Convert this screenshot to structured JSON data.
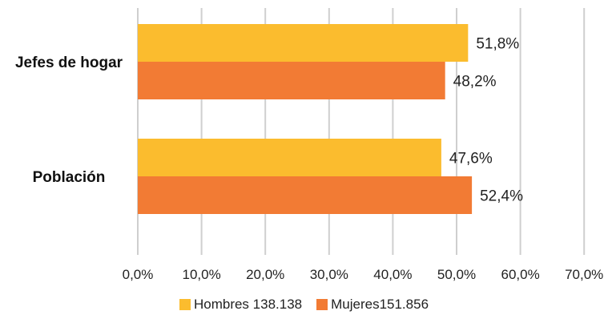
{
  "chart_data": {
    "type": "bar",
    "orientation": "horizontal",
    "categories": [
      "Jefes de hogar",
      "Población"
    ],
    "series": [
      {
        "name": "Hombres 138.138",
        "values": [
          51.8,
          47.6
        ],
        "labels": [
          "51,8%",
          "47,6%"
        ],
        "color": "#FBBC2E"
      },
      {
        "name": "Mujeres151.856",
        "values": [
          48.2,
          52.4
        ],
        "labels": [
          "48,2%",
          "52,4%"
        ],
        "color": "#F27B34"
      }
    ],
    "xlim": [
      0,
      70
    ],
    "xticks": [
      0,
      10,
      20,
      30,
      40,
      50,
      60,
      70
    ],
    "xtick_labels": [
      "0,0%",
      "10,0%",
      "20,0%",
      "30,0%",
      "40,0%",
      "50,0%",
      "60,0%",
      "70,0%"
    ],
    "grid": "vertical",
    "legend_position": "bottom"
  }
}
